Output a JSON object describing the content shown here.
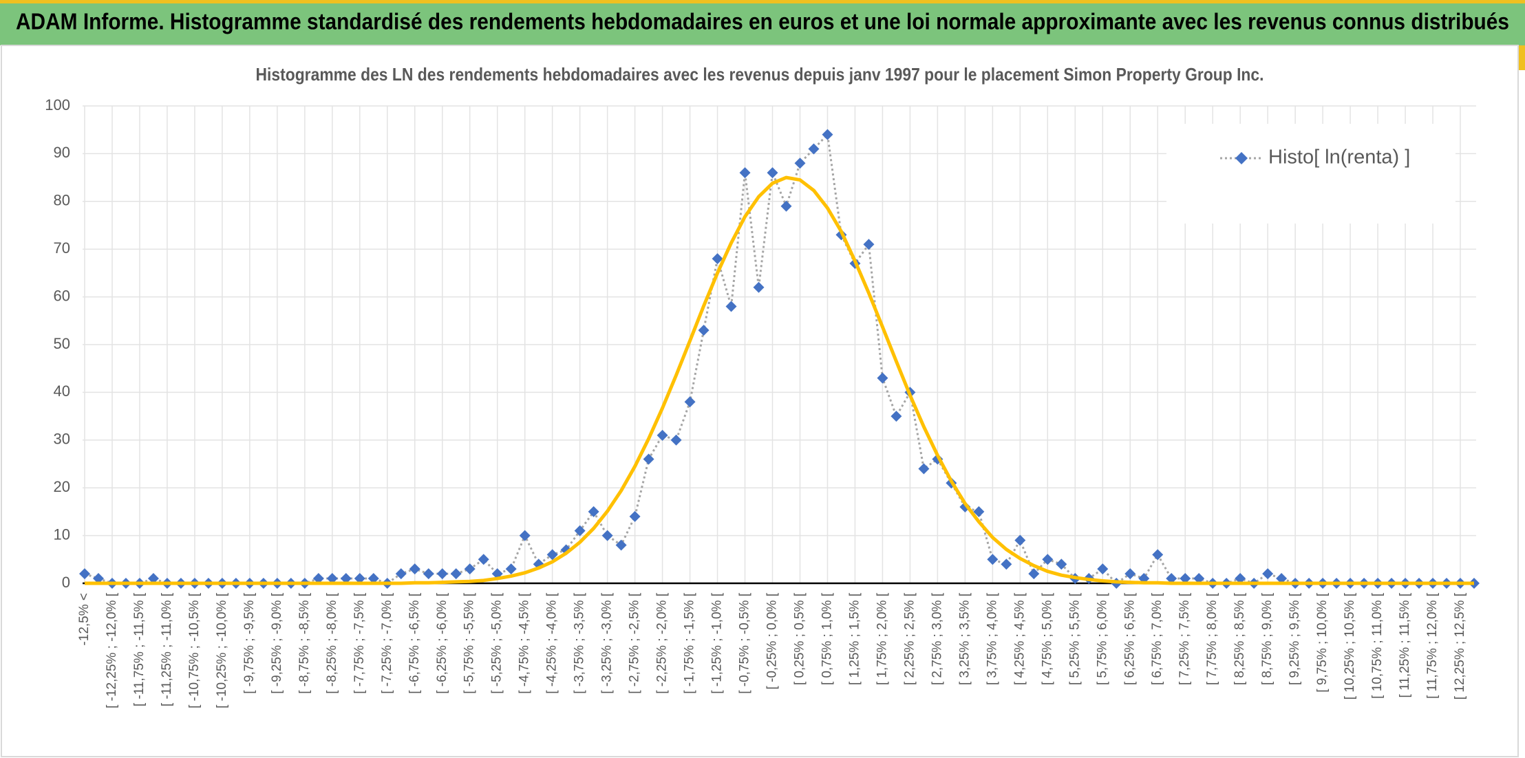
{
  "page_title": "ADAM Informe. Histogramme standardisé des rendements hebdomadaires en euros et une loi normale approximante avec les revenus connus distribués",
  "chart_data": {
    "type": "line",
    "title": "Histogramme des LN des rendements hebdomadaires avec les revenus depuis janv 1997 pour le placement Simon Property Group Inc.",
    "categories": [
      "-12,5% <",
      null,
      "[ -12,25% ; -12,0% [",
      null,
      "[ -11,75% ; -11,5% [",
      null,
      "[ -11,25% ; -11,0% [",
      null,
      "[ -10,75% ; -10,5% [",
      null,
      "[ -10,25% ; -10,0% [",
      null,
      "[ -9,75% ; -9,5% [",
      null,
      "[ -9,25% ; -9,0% [",
      null,
      "[ -8,75% ; -8,5% [",
      null,
      "[ -8,25% ; -8,0% [",
      null,
      "[ -7,75% ; -7,5% [",
      null,
      "[ -7,25% ; -7,0% [",
      null,
      "[ -6,75% ; -6,5% [",
      null,
      "[ -6,25% ; -6,0% [",
      null,
      "[ -5,75% ; -5,5% [",
      null,
      "[ -5,25% ; -5,0% [",
      null,
      "[ -4,75% ; -4,5% [",
      null,
      "[ -4,25% ; -4,0% [",
      null,
      "[ -3,75% ; -3,5% [",
      null,
      "[ -3,25% ; -3,0% [",
      null,
      "[ -2,75% ; -2,5% [",
      null,
      "[ -2,25% ; -2,0% [",
      null,
      "[ -1,75% ; -1,5% [",
      null,
      "[ -1,25% ; -1,0% [",
      null,
      "[ -0,75% ; -0,5% [",
      null,
      "[ -0,25% ; 0,0% [",
      null,
      "[ 0,25% ; 0,5% [",
      null,
      "[ 0,75% ; 1,0% [",
      null,
      "[ 1,25% ; 1,5% [",
      null,
      "[ 1,75% ; 2,0% [",
      null,
      "[ 2,25% ; 2,5% [",
      null,
      "[ 2,75% ; 3,0% [",
      null,
      "[ 3,25% ; 3,5% [",
      null,
      "[ 3,75% ; 4,0% [",
      null,
      "[ 4,25% ; 4,5% [",
      null,
      "[ 4,75% ; 5,0% [",
      null,
      "[ 5,25% ; 5,5% [",
      null,
      "[ 5,75% ; 6,0% [",
      null,
      "[ 6,25% ; 6,5% [",
      null,
      "[ 6,75% ; 7,0% [",
      null,
      "[ 7,25% ; 7,5% [",
      null,
      "[ 7,75% ; 8,0% [",
      null,
      "[ 8,25% ; 8,5% [",
      null,
      "[ 8,75% ; 9,0% [",
      null,
      "[ 9,25% ; 9,5% [",
      null,
      "[ 9,75% ; 10,0% [",
      null,
      "[ 10,25% ; 10,5% [",
      null,
      "[ 10,75% ; 11,0% [",
      null,
      "[ 11,25% ; 11,5% [",
      null,
      "[ 11,75% ; 12,0% [",
      null,
      "[ 12,25% ; 12,5% [",
      null
    ],
    "series": [
      {
        "name": "Histo[ ln(renta) ]",
        "color": "#4472c4",
        "line_color": "#a5a5a5",
        "values": [
          2,
          1,
          0,
          0,
          0,
          1,
          0,
          0,
          0,
          0,
          0,
          0,
          0,
          0,
          0,
          0,
          0,
          1,
          1,
          1,
          1,
          1,
          0,
          2,
          3,
          2,
          2,
          2,
          3,
          5,
          2,
          3,
          10,
          4,
          6,
          7,
          11,
          15,
          10,
          8,
          14,
          26,
          31,
          30,
          38,
          53,
          68,
          58,
          86,
          62,
          86,
          79,
          88,
          91,
          94,
          73,
          67,
          71,
          43,
          35,
          40,
          24,
          26,
          21,
          16,
          15,
          5,
          4,
          9,
          2,
          5,
          4,
          1,
          1,
          3,
          0,
          2,
          1,
          6,
          1,
          1,
          1,
          0,
          0,
          1,
          0,
          2,
          1,
          0,
          0,
          0,
          0,
          0,
          0,
          0,
          0,
          0,
          0,
          0,
          0,
          0,
          0
        ]
      },
      {
        "color": "#ffc000",
        "values": [
          0,
          0,
          0,
          0,
          0,
          0,
          0,
          0,
          0,
          0,
          0,
          0,
          0,
          0,
          0,
          0,
          0,
          0,
          0,
          0,
          0,
          0,
          0,
          0,
          0.1,
          0.1,
          0.2,
          0.3,
          0.4,
          0.6,
          1.0,
          1.5,
          2.2,
          3.2,
          4.5,
          6.3,
          8.6,
          11.5,
          15.1,
          19.4,
          24.5,
          30.3,
          36.7,
          43.6,
          50.8,
          58.1,
          65.0,
          71.3,
          76.8,
          81.0,
          83.8,
          85.0,
          84.5,
          82.3,
          78.6,
          73.7,
          67.5,
          60.8,
          53.7,
          46.5,
          39.4,
          32.8,
          26.8,
          21.4,
          16.7,
          12.9,
          9.6,
          7.1,
          5.2,
          3.7,
          2.5,
          1.7,
          1.2,
          0.8,
          0.5,
          0.3,
          0.2,
          0.1,
          0.1,
          0,
          0,
          0,
          0,
          0,
          0,
          0,
          0,
          0,
          0,
          0,
          0,
          0,
          0,
          0,
          0,
          0,
          0,
          0,
          0,
          0,
          0,
          0
        ]
      }
    ],
    "ylim": [
      0,
      100
    ],
    "yticks": [
      0,
      10,
      20,
      30,
      40,
      50,
      60,
      70,
      80,
      90,
      100
    ],
    "grid": true,
    "legend": "upper right"
  }
}
